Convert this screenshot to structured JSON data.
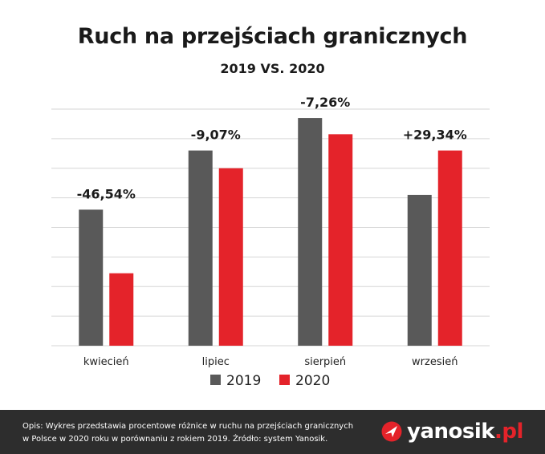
{
  "title": "Ruch na przejściach granicznych",
  "subtitle": "2019 VS. 2020",
  "chart_data": {
    "type": "bar",
    "categories": [
      "kwiecień",
      "lipiec",
      "sierpień",
      "wrzesień"
    ],
    "series": [
      {
        "name": "2019",
        "color": "#595959",
        "values": [
          4.6,
          6.6,
          7.7,
          5.1
        ]
      },
      {
        "name": "2020",
        "color": "#e4232a",
        "values": [
          2.45,
          6.0,
          7.15,
          6.6
        ]
      }
    ],
    "annotations": [
      "-46,54%",
      "-9,07%",
      "-7,26%",
      "+29,34%"
    ],
    "ylim": [
      0,
      8
    ],
    "grid": true,
    "legend": "bottom"
  },
  "footer": {
    "line1": "Opis: Wykres przedstawia procentowe różnice w ruchu na przejściach granicznych",
    "line2": "w Polsce w 2020 roku w porównaniu z rokiem 2019. Źródło: system Yanosik."
  },
  "logo": {
    "name": "yanosik",
    "suffix": ".pl",
    "icon": "yanosik-logo-icon"
  }
}
